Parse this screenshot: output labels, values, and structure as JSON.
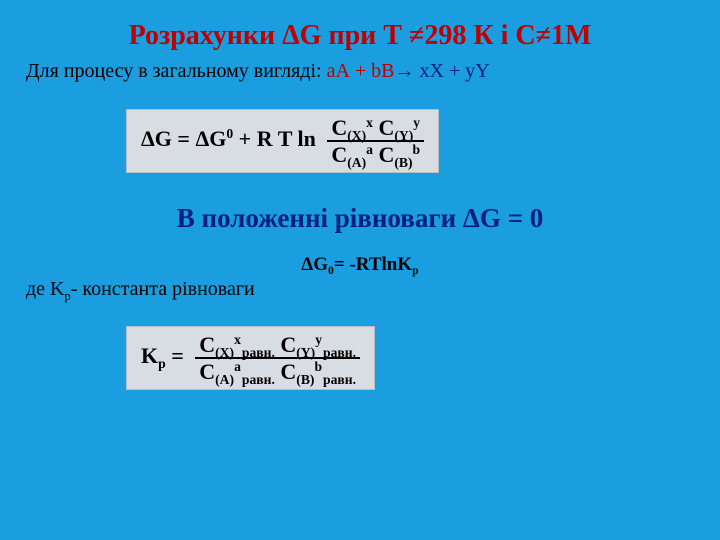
{
  "title": "Розрахунки ΔG при Т ≠298 К і С≠1М",
  "process_prefix": "Для процесу в загальному вигляді: ",
  "eq_lhs_red": "аА + bВ",
  "eq_arrow": "→ ",
  "eq_rhs_blue": "хХ + yY",
  "formula1": {
    "lhs": "ΔG  =  ΔG",
    "sup0": "0",
    "mid": "  +  R T  ln",
    "num_a": "C",
    "num_a_sub": "(X)",
    "num_a_sup": "x",
    "num_b": " C",
    "num_b_sub": "(Y)",
    "num_b_sup": "y",
    "den_a": "C",
    "den_a_sub": "(A)",
    "den_a_sup": "a",
    "den_b": " C",
    "den_b_sub": "(B)",
    "den_b_sup": "b"
  },
  "heading2": "В положенні рівноваги ΔG = 0",
  "eq2_lhs": "ΔG",
  "eq2_sub0": "0",
  "eq2_rhs": "= -RTlnK",
  "eq2_psub": "p",
  "note_prefix": "де K",
  "note_psub": "р",
  "note_rest": "- константа рівноваги",
  "formula2": {
    "lhs": "K",
    "lhs_sub": "p",
    "eq": "  =  ",
    "num_a": "C",
    "num_a_sub": "(X)",
    "num_a_sup": "x",
    "num_b": " C",
    "num_b_sub": "(Y)",
    "num_b_sup": "y",
    "den_a": "C",
    "den_a_sub": "(A)",
    "den_a_sup": "a",
    "den_b": " C",
    "den_b_sub": "(B)",
    "den_b_sup": "b",
    "ravn": "равн."
  },
  "colors": {
    "background": "#1a9ee0",
    "red": "#c00000",
    "blue": "#001f7f",
    "box_bg": "#d8dde3"
  }
}
